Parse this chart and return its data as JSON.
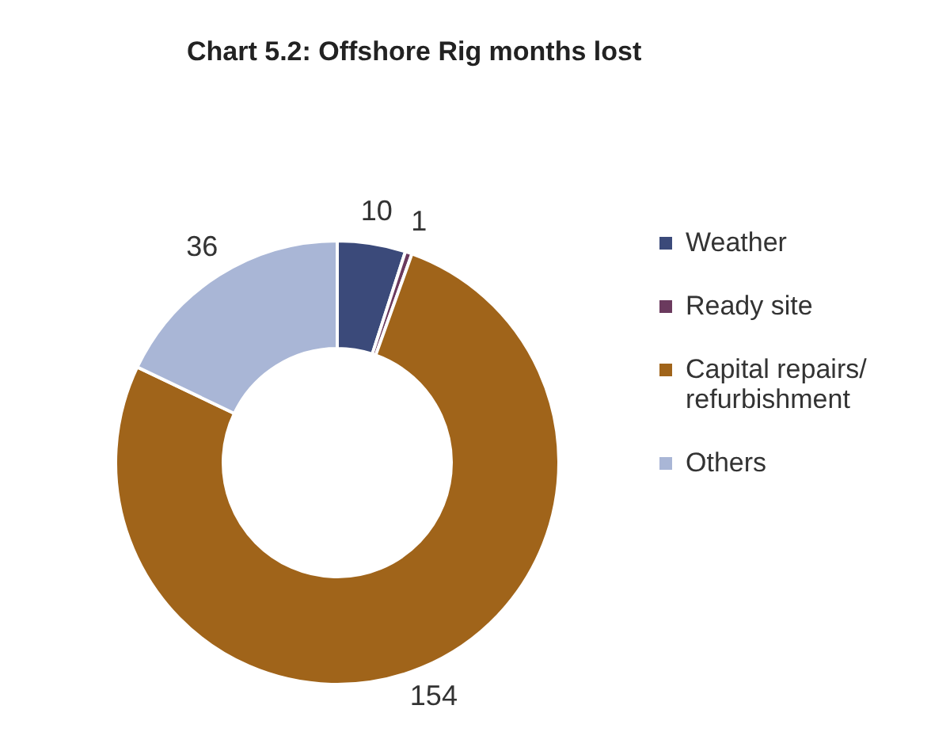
{
  "chart_data": {
    "type": "donut",
    "title": "Chart 5.2: Offshore Rig months lost",
    "categories": [
      "Weather",
      "Ready site",
      "Capital repairs/ refurbishment",
      "Others"
    ],
    "values": [
      10,
      1,
      154,
      36
    ],
    "colors": [
      "#3b4a7a",
      "#6b3a5e",
      "#a0641a",
      "#a9b6d6"
    ],
    "data_labels": true,
    "legend": "right"
  }
}
